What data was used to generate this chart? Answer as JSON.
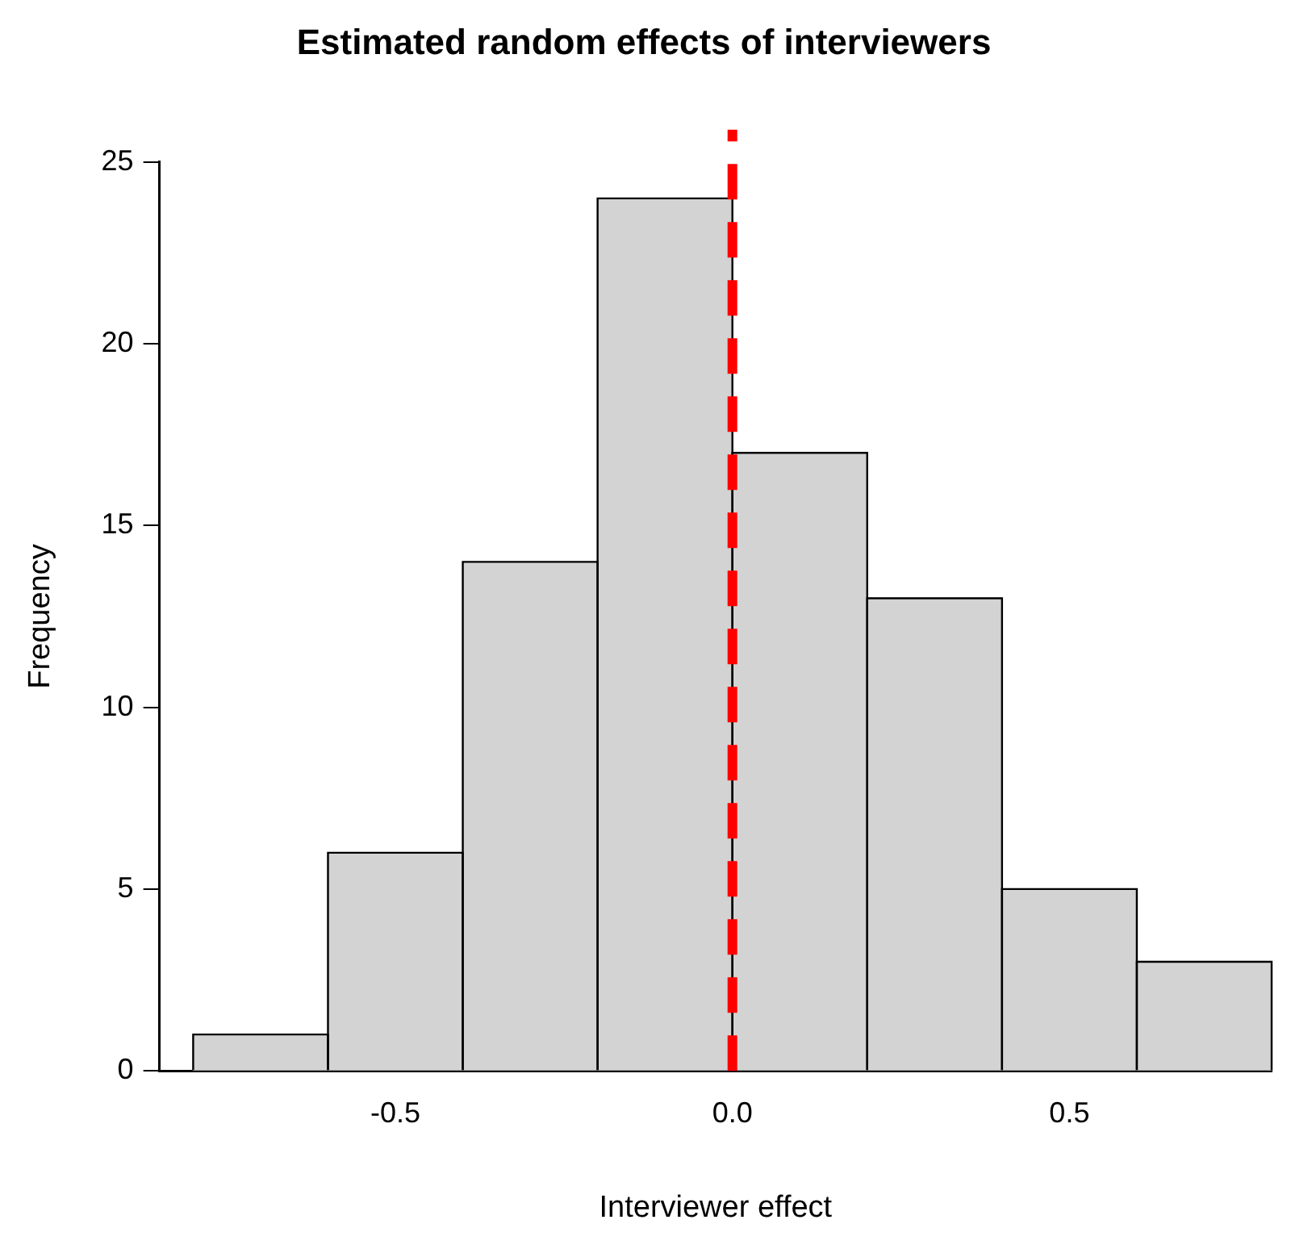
{
  "chart_data": {
    "type": "histogram",
    "title": "Estimated random effects of interviewers",
    "xlabel": "Interviewer effect",
    "ylabel": "Frequency",
    "bins": [
      -0.8,
      -0.6,
      -0.4,
      -0.2,
      0,
      0.2,
      0.4,
      0.6,
      0.8
    ],
    "values": [
      1,
      6,
      14,
      24,
      17,
      13,
      5,
      3
    ],
    "color": "#d3d3d3",
    "xlim": [
      -0.85,
      0.8
    ],
    "ylim": [
      0,
      25
    ],
    "xticks": [
      -0.5,
      {
        "value": 0,
        "label": "0.0"
      },
      0.5
    ],
    "yticks": [
      0,
      5,
      10,
      15,
      20,
      25
    ],
    "ref_lines": [
      {
        "axis": "x",
        "value": 0,
        "color": "#ff0000",
        "line_style": "dashed"
      }
    ],
    "grid": false,
    "legend": false
  }
}
